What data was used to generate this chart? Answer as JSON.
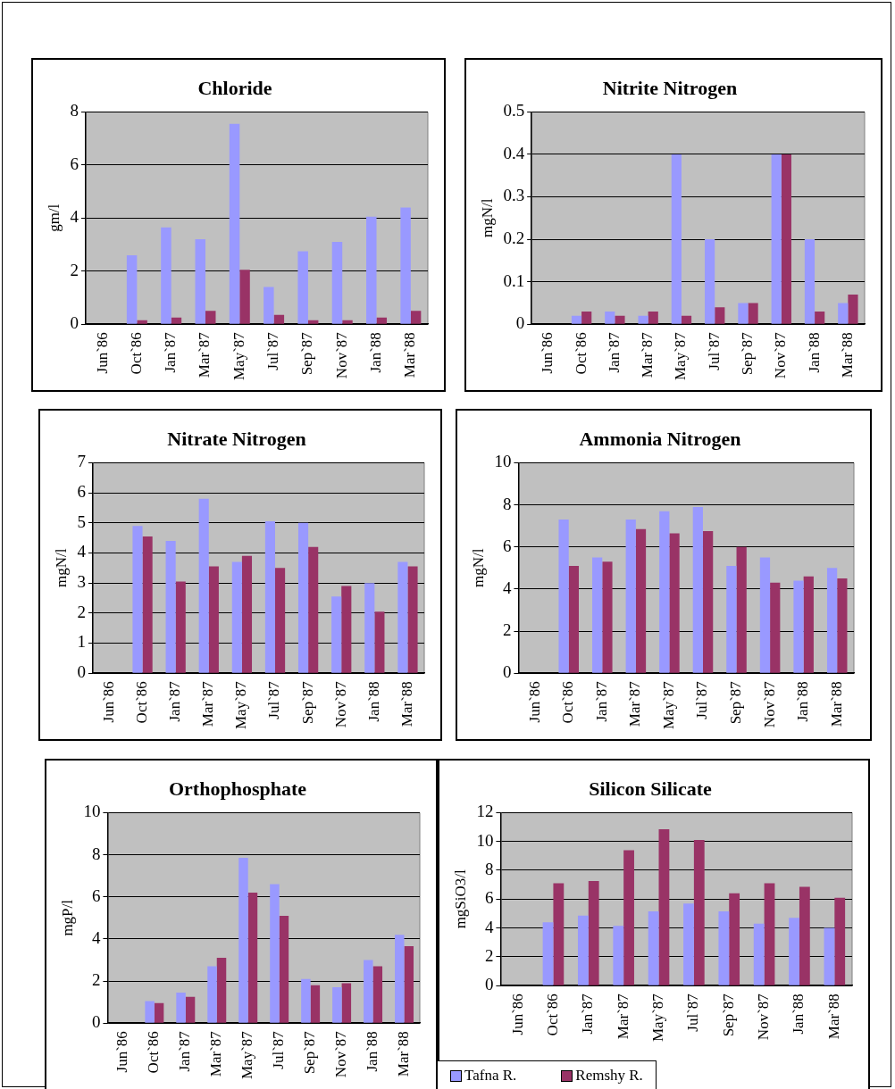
{
  "chart_data": [
    {
      "type": "bar",
      "title": "Chloride",
      "ylabel": "gm/l",
      "categories": [
        "Jun`86",
        "Oct`86",
        "Jan`87",
        "Mar`87",
        "May`87",
        "Jul`87",
        "Sep`87",
        "Nov`87",
        "Jan`88",
        "Mar`88"
      ],
      "ylim": [
        0,
        8
      ],
      "yticks": [
        0,
        2,
        4,
        6,
        8
      ],
      "grid": "y",
      "series": [
        {
          "color": "#9999ff",
          "values": [
            null,
            2.6,
            3.65,
            3.2,
            7.55,
            1.4,
            2.75,
            3.1,
            4.05,
            4.4
          ]
        },
        {
          "color": "#993366",
          "values": [
            null,
            0.15,
            0.25,
            0.5,
            2.05,
            0.35,
            0.15,
            0.15,
            0.25,
            0.5
          ]
        }
      ]
    },
    {
      "type": "bar",
      "title": "Nitrite Nitrogen",
      "ylabel": "mgN/l",
      "categories": [
        "Jun`86",
        "Oct`86",
        "Jan`87",
        "Mar`87",
        "May`87",
        "Jul`87",
        "Sep`87",
        "Nov`87",
        "Jan`88",
        "Mar`88"
      ],
      "ylim": [
        0,
        0.5
      ],
      "yticks": [
        0,
        0.1,
        0.2,
        0.3,
        0.4,
        0.5
      ],
      "grid": "y",
      "series": [
        {
          "color": "#9999ff",
          "values": [
            null,
            0.02,
            0.03,
            0.02,
            0.4,
            0.2,
            0.05,
            0.4,
            0.2,
            0.05
          ]
        },
        {
          "color": "#993366",
          "values": [
            null,
            0.03,
            0.02,
            0.03,
            0.02,
            0.04,
            0.05,
            0.4,
            0.03,
            0.07
          ]
        }
      ]
    },
    {
      "type": "bar",
      "title": "Nitrate Nitrogen",
      "ylabel": "mgN/l",
      "categories": [
        "Jun`86",
        "Oct`86",
        "Jan`87",
        "Mar`87",
        "May`87",
        "Jul`87",
        "Sep`87",
        "Nov`87",
        "Jan`88",
        "Mar`88"
      ],
      "ylim": [
        0,
        7
      ],
      "yticks": [
        0,
        1,
        2,
        3,
        4,
        5,
        6,
        7
      ],
      "grid": "y",
      "series": [
        {
          "color": "#9999ff",
          "values": [
            null,
            4.9,
            4.4,
            5.8,
            3.7,
            5.05,
            5.0,
            2.55,
            3.0,
            3.7
          ]
        },
        {
          "color": "#993366",
          "values": [
            null,
            4.55,
            3.05,
            3.55,
            3.9,
            3.5,
            4.2,
            2.9,
            2.05,
            3.55
          ]
        }
      ]
    },
    {
      "type": "bar",
      "title": "Ammonia Nitrogen",
      "ylabel": "mgN/l",
      "categories": [
        "Jun`86",
        "Oct`86",
        "Jan`87",
        "Mar`87",
        "May`87",
        "Jul`87",
        "Sep`87",
        "Nov`87",
        "Jan`88",
        "Mar`88"
      ],
      "ylim": [
        0,
        10
      ],
      "yticks": [
        0,
        2,
        4,
        6,
        8,
        10
      ],
      "grid": "y",
      "series": [
        {
          "color": "#9999ff",
          "values": [
            null,
            7.3,
            5.5,
            7.3,
            7.7,
            7.9,
            5.1,
            5.5,
            4.4,
            5.0
          ]
        },
        {
          "color": "#993366",
          "values": [
            null,
            5.1,
            5.3,
            6.85,
            6.65,
            6.75,
            6.0,
            4.3,
            4.6,
            4.5
          ]
        }
      ]
    },
    {
      "type": "bar",
      "title": "Orthophosphate",
      "ylabel": "mgP/l",
      "categories": [
        "Jun`86",
        "Oct`86",
        "Jan`87",
        "Mar`87",
        "May`87",
        "Jul`87",
        "Sep`87",
        "Nov`87",
        "Jan`88",
        "Mar`88"
      ],
      "ylim": [
        0,
        10
      ],
      "yticks": [
        0,
        2,
        4,
        6,
        8,
        10
      ],
      "grid": "y",
      "series": [
        {
          "color": "#9999ff",
          "values": [
            null,
            1.05,
            1.45,
            2.7,
            7.85,
            6.6,
            2.1,
            1.7,
            3.0,
            4.2
          ]
        },
        {
          "color": "#993366",
          "values": [
            null,
            0.95,
            1.25,
            3.1,
            6.2,
            5.1,
            1.8,
            1.9,
            2.7,
            3.65
          ]
        }
      ]
    },
    {
      "type": "bar",
      "title": "Silicon Silicate",
      "ylabel": "mgSiO3/l",
      "categories": [
        "Jun`86",
        "Oct`86",
        "Jan`87",
        "Mar`87",
        "May`87",
        "Jul`87",
        "Sep`87",
        "Nov`87",
        "Jan`88",
        "Mar`88"
      ],
      "ylim": [
        0,
        12
      ],
      "yticks": [
        0,
        2,
        4,
        6,
        8,
        10,
        12
      ],
      "grid": "y",
      "legend": "bottom left",
      "series": [
        {
          "name": "Tafna R.",
          "color": "#9999ff",
          "values": [
            null,
            4.4,
            4.85,
            4.15,
            5.15,
            5.7,
            5.15,
            4.3,
            4.7,
            4.0
          ]
        },
        {
          "name": "Remshy R.",
          "color": "#993366",
          "values": [
            null,
            7.1,
            7.25,
            9.4,
            10.85,
            10.1,
            6.4,
            7.1,
            6.85,
            6.1
          ]
        }
      ]
    }
  ]
}
